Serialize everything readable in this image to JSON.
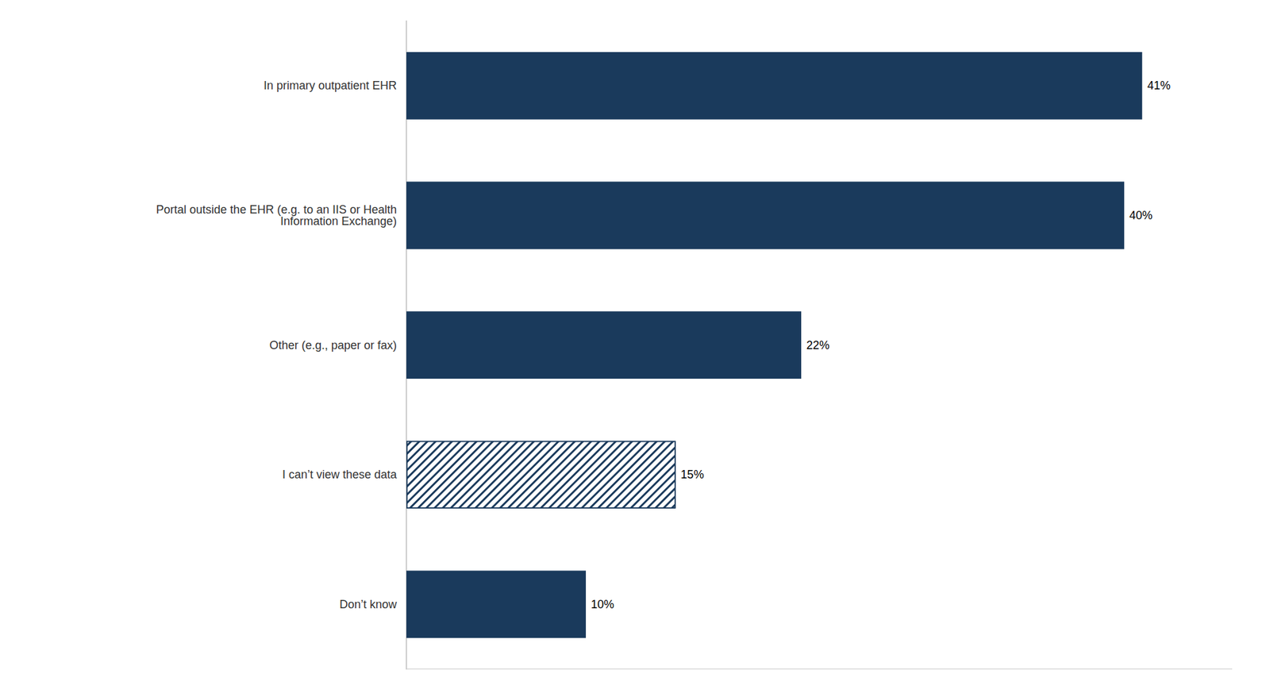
{
  "chart_data": {
    "type": "bar",
    "orientation": "horizontal",
    "categories": [
      "Don’t know",
      "I can’t view these data",
      "Other (e.g., paper or fax)",
      "Portal outside the EHR (e.g. to an IIS or Health\nInformation Exchange)",
      "In primary outpatient EHR"
    ],
    "values": [
      10,
      15,
      22,
      40,
      41
    ],
    "value_labels": [
      "10%",
      "15%",
      "22%",
      "40%",
      "41%"
    ],
    "data_labels": true,
    "colors": [
      "#1a3a5c",
      "#ffffff",
      "#1a3a5c",
      "#1a3a5c",
      "#1a3a5c"
    ],
    "xlim": [
      0,
      46
    ],
    "tick_labels": "y",
    "grid": false
  }
}
